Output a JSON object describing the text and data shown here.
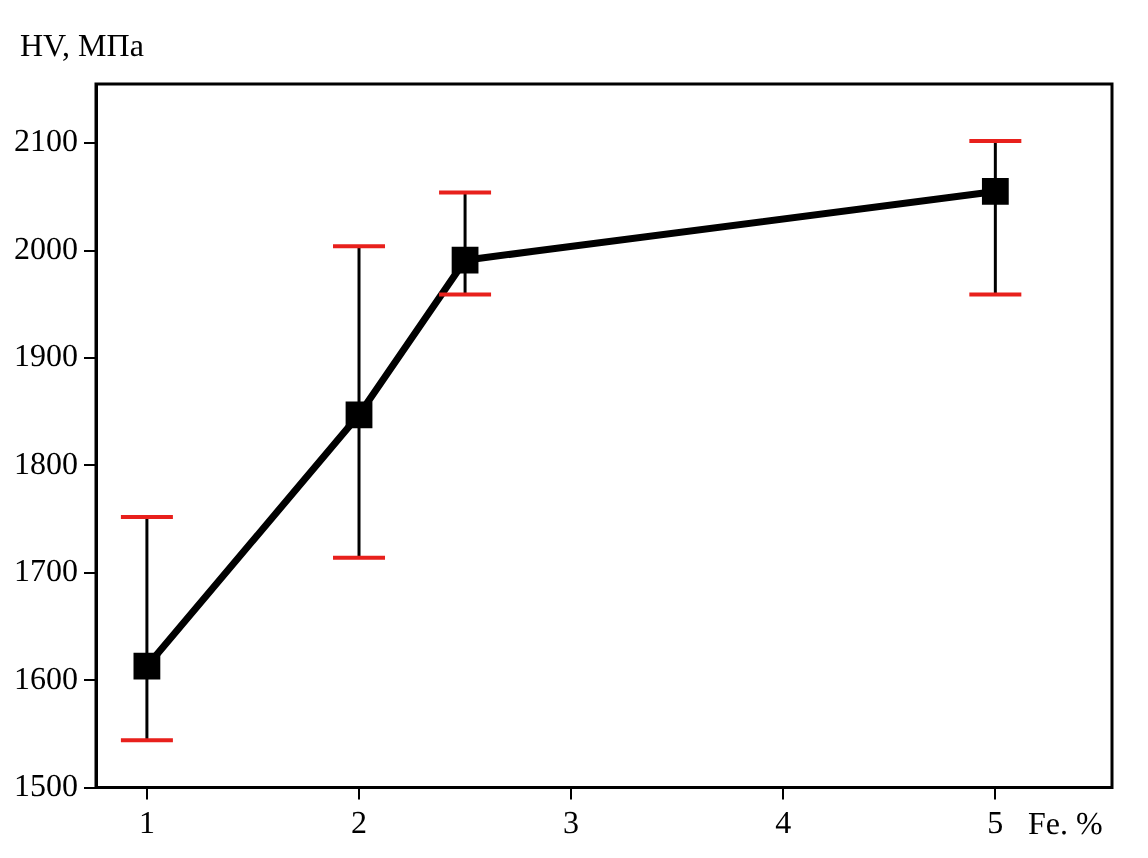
{
  "chart_data": {
    "type": "line",
    "xlabel": "Fe. %",
    "ylabel": "HV, МПа",
    "x": [
      1,
      2,
      2.5,
      5
    ],
    "series": [
      {
        "color": "#000000",
        "values": [
          1613,
          1847,
          1991,
          2055
        ],
        "errors": [
          [
            1544,
            1752
          ],
          [
            1714,
            2004
          ],
          [
            1959,
            2054
          ],
          [
            1959,
            2102
          ]
        ]
      }
    ],
    "xlim": [
      0.76,
      5.55
    ],
    "xticks": [
      1,
      2,
      3,
      4,
      5
    ],
    "ylim": [
      1500,
      2155
    ],
    "yticks": [
      1500,
      1600,
      1700,
      1800,
      1900,
      2000,
      2100
    ],
    "grid": false,
    "legend": false,
    "marker": "square",
    "line_style": "solid"
  }
}
